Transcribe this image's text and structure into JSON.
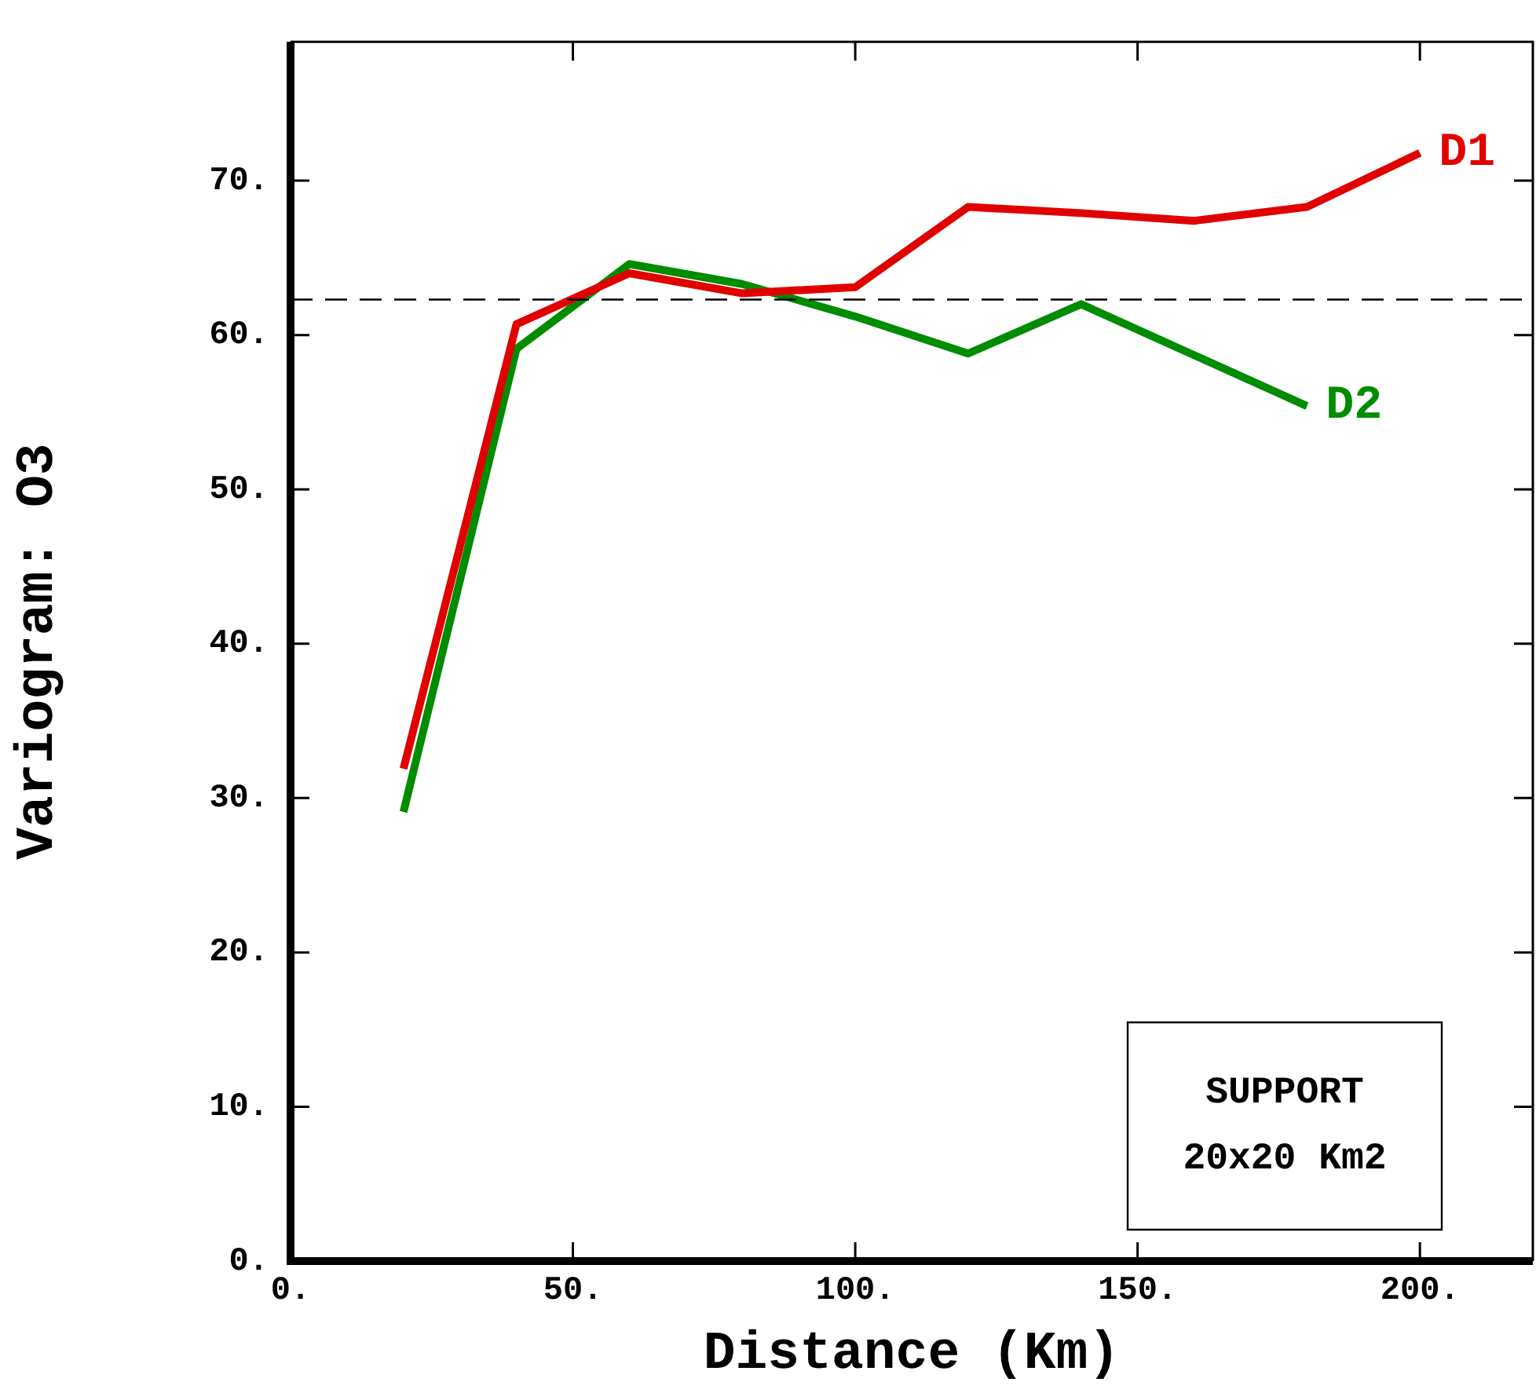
{
  "chart_data": {
    "type": "line",
    "xlabel": "Distance (Km)",
    "ylabel": "Variogram: O3",
    "x": [
      20,
      40,
      60,
      80,
      100,
      120,
      140,
      160,
      180,
      200
    ],
    "series": [
      {
        "name": "D1",
        "color": "#e00000",
        "values": [
          31.9,
          60.7,
          64.0,
          62.7,
          63.1,
          68.3,
          67.9,
          67.4,
          68.3,
          71.8
        ]
      },
      {
        "name": "D2",
        "color": "#008c00",
        "values": [
          29.1,
          59.1,
          64.6,
          63.3,
          61.2,
          58.8,
          62.0,
          58.7,
          55.4,
          null
        ]
      }
    ],
    "xlim": [
      0,
      220
    ],
    "ylim": [
      0,
      79
    ],
    "xticks": [
      {
        "value": 0,
        "label": "0."
      },
      {
        "value": 50,
        "label": "50."
      },
      {
        "value": 100,
        "label": "100."
      },
      {
        "value": 150,
        "label": "150."
      },
      {
        "value": 200,
        "label": "200."
      }
    ],
    "yticks": [
      {
        "value": 0,
        "label": "0."
      },
      {
        "value": 10,
        "label": "10."
      },
      {
        "value": 20,
        "label": "20."
      },
      {
        "value": 30,
        "label": "30."
      },
      {
        "value": 40,
        "label": "40."
      },
      {
        "value": 50,
        "label": "50."
      },
      {
        "value": 60,
        "label": "60."
      },
      {
        "value": 70,
        "label": "70."
      }
    ],
    "ref_lines": [
      {
        "axis": "y",
        "value": 62.3,
        "color": "#000000",
        "line_style": "dashed"
      }
    ],
    "annotations": [
      "SUPPORT\n20x20 Km2"
    ],
    "grid": false,
    "legend": false,
    "marker": "none",
    "line_style": "solid"
  }
}
